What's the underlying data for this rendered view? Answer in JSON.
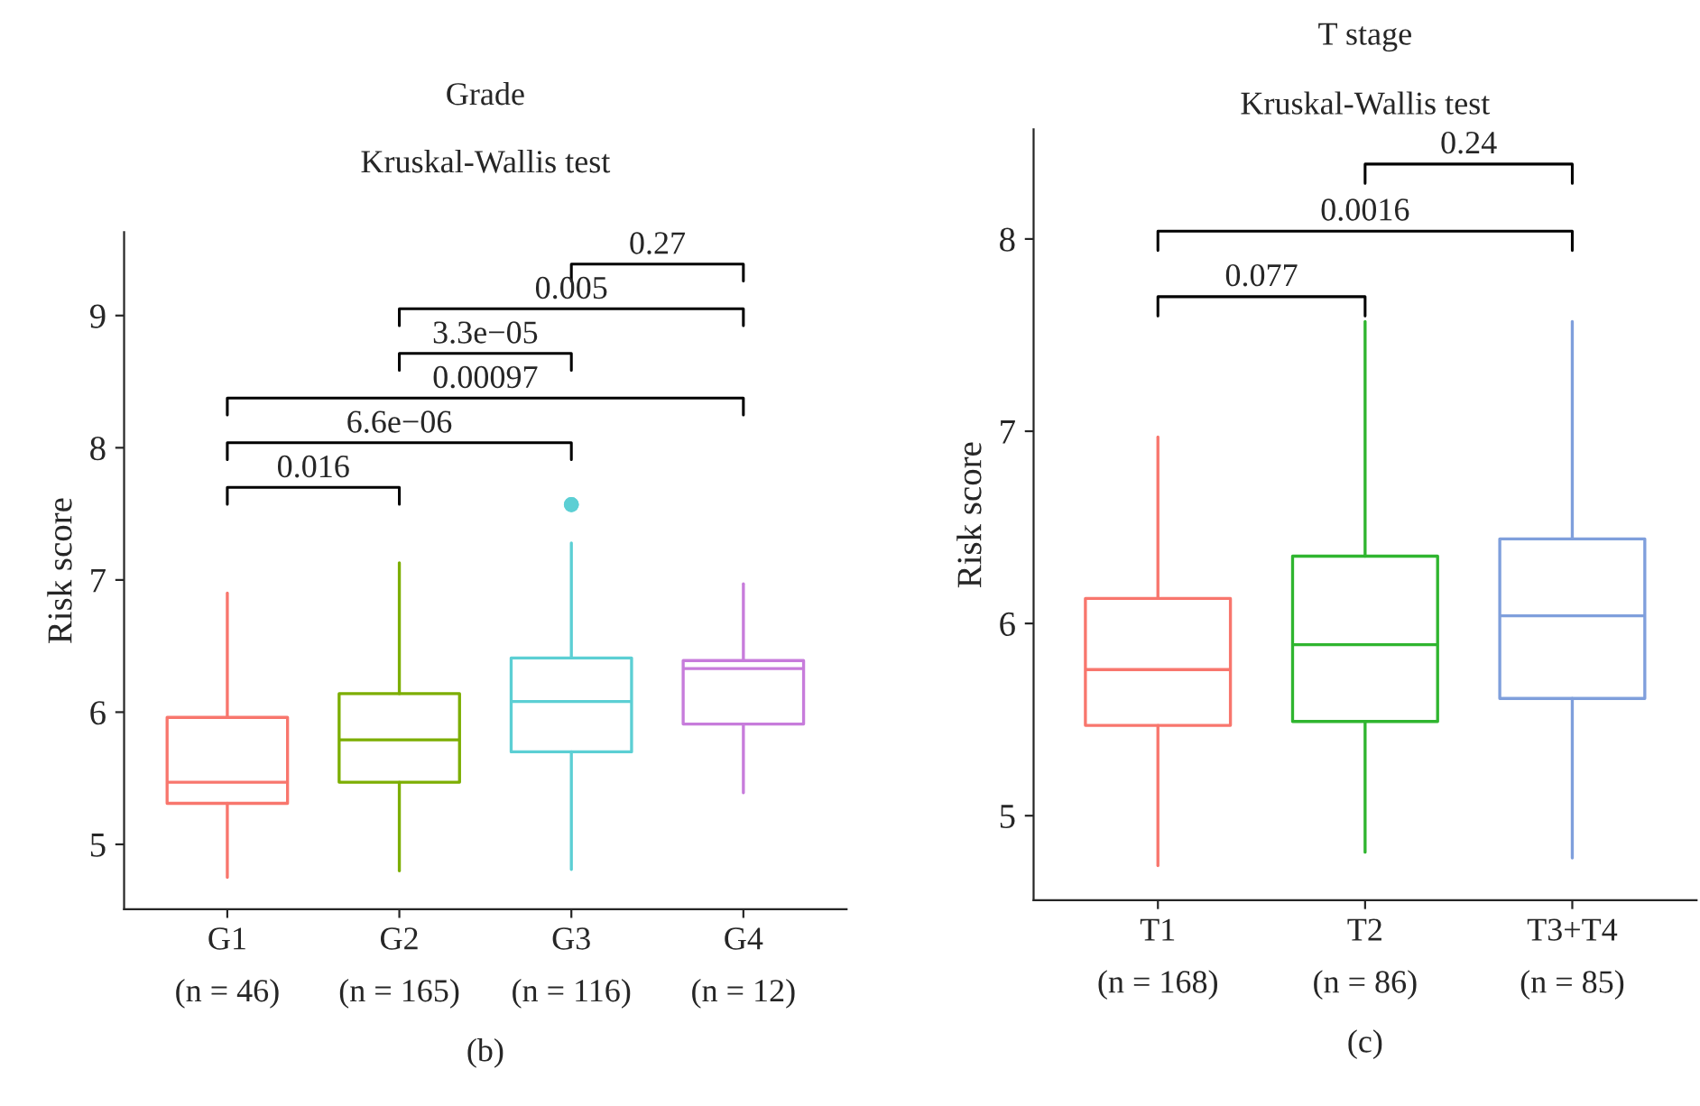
{
  "chart_data": [
    {
      "type": "box",
      "title": "Grade",
      "subtitle": "Kruskal-Wallis test",
      "ylabel": "Risk score",
      "xlabel": "(b)",
      "categories": [
        "G1\n(n = 46)",
        "G2\n(n = 165)",
        "G3\n(n = 116)",
        "G4\n(n = 12)"
      ],
      "colors": [
        "#f8766d",
        "#7cae00",
        "#5ccfd4",
        "#c77cdb"
      ],
      "boxes": [
        {
          "low": 4.75,
          "q1": 5.31,
          "median": 5.47,
          "q3": 5.96,
          "high": 6.9
        },
        {
          "low": 4.8,
          "q1": 5.47,
          "median": 5.79,
          "q3": 6.14,
          "high": 7.13
        },
        {
          "low": 4.81,
          "q1": 5.7,
          "median": 6.08,
          "q3": 6.41,
          "high": 7.28,
          "outliers": [
            7.57,
            7.57
          ]
        },
        {
          "low": 5.39,
          "q1": 5.91,
          "median": 6.33,
          "q3": 6.39,
          "high": 6.97
        }
      ],
      "annotations": [
        "0.016",
        "6.6e−06",
        "0.00097",
        "3.3e−05",
        "0.005",
        "0.27"
      ],
      "ylim": [
        4.51,
        9.63
      ],
      "yticks": [
        5,
        6,
        7,
        8,
        9
      ],
      "grid": false
    },
    {
      "type": "box",
      "title": "T stage",
      "subtitle": "Kruskal-Wallis test",
      "ylabel": "Risk score",
      "xlabel": "(c)",
      "categories": [
        "T1\n(n = 168)",
        "T2\n(n = 86)",
        "T3+T4\n(n = 85)"
      ],
      "colors": [
        "#f8766d",
        "#2fb52f",
        "#7f9fdc"
      ],
      "boxes": [
        {
          "low": 4.74,
          "q1": 5.47,
          "median": 5.76,
          "q3": 6.13,
          "high": 6.97
        },
        {
          "low": 4.81,
          "q1": 5.49,
          "median": 5.89,
          "q3": 6.35,
          "high": 7.57
        },
        {
          "low": 4.78,
          "q1": 5.61,
          "median": 6.04,
          "q3": 6.44,
          "high": 7.57
        }
      ],
      "annotations": [
        "0.077",
        "0.0016",
        "0.24"
      ],
      "ylim": [
        4.56,
        8.57
      ],
      "yticks": [
        5,
        6,
        7,
        8
      ],
      "grid": false
    }
  ]
}
